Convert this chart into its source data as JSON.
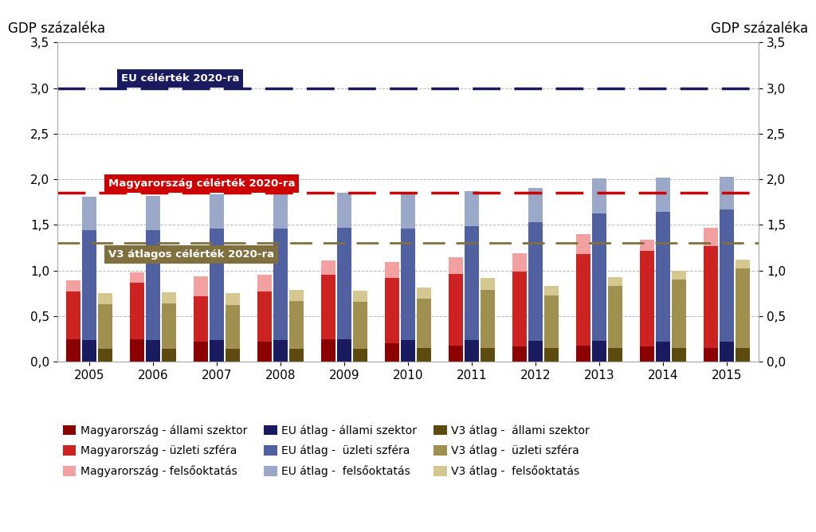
{
  "years": [
    2005,
    2006,
    2007,
    2008,
    2009,
    2010,
    2011,
    2012,
    2013,
    2014,
    2015
  ],
  "hu_gov": [
    0.25,
    0.25,
    0.22,
    0.22,
    0.25,
    0.2,
    0.18,
    0.17,
    0.18,
    0.17,
    0.15
  ],
  "hu_biz": [
    0.52,
    0.62,
    0.5,
    0.55,
    0.7,
    0.72,
    0.78,
    0.82,
    1.0,
    1.05,
    1.12
  ],
  "hu_edu": [
    0.12,
    0.11,
    0.22,
    0.18,
    0.16,
    0.17,
    0.19,
    0.2,
    0.22,
    0.12,
    0.2
  ],
  "eu_gov": [
    0.24,
    0.24,
    0.24,
    0.24,
    0.25,
    0.24,
    0.24,
    0.23,
    0.23,
    0.22,
    0.22
  ],
  "eu_biz": [
    1.2,
    1.2,
    1.22,
    1.22,
    1.22,
    1.22,
    1.25,
    1.3,
    1.4,
    1.42,
    1.45
  ],
  "eu_edu": [
    0.37,
    0.38,
    0.38,
    0.38,
    0.38,
    0.38,
    0.38,
    0.38,
    0.38,
    0.38,
    0.36
  ],
  "v3_gov": [
    0.14,
    0.14,
    0.14,
    0.14,
    0.14,
    0.15,
    0.15,
    0.15,
    0.15,
    0.15,
    0.15
  ],
  "v3_biz": [
    0.49,
    0.5,
    0.48,
    0.53,
    0.52,
    0.54,
    0.64,
    0.58,
    0.68,
    0.75,
    0.87
  ],
  "v3_edu": [
    0.12,
    0.12,
    0.13,
    0.12,
    0.12,
    0.12,
    0.13,
    0.1,
    0.1,
    0.1,
    0.1
  ],
  "eu_target": 3.0,
  "hu_target": 1.85,
  "v3_target": 1.3,
  "colors": {
    "hu_gov": "#8B0000",
    "hu_biz": "#CC2222",
    "hu_edu": "#F2A0A0",
    "eu_gov": "#1A1A5E",
    "eu_biz": "#5060A0",
    "eu_edu": "#9BA8C8",
    "v3_gov": "#5C4A10",
    "v3_biz": "#A09050",
    "v3_edu": "#D4C890"
  },
  "bar_width": 0.22,
  "bar_gap": 0.03,
  "ylim": [
    0.0,
    3.5
  ],
  "yticks": [
    0.0,
    0.5,
    1.0,
    1.5,
    2.0,
    2.5,
    3.0,
    3.5
  ],
  "ylabel_left": "GDP százaléka",
  "ylabel_right": "GDP százaléka",
  "eu_target_label": "EU célérték 2020-ra",
  "hu_target_label": "Magyarország célérték 2020-ra",
  "v3_target_label": "V3 átlagos célérték 2020-ra",
  "legend_labels": [
    "Magyarország - állami szektor",
    "Magyarország - üzleti szféra",
    "Magyarország - felsőoktatás",
    "EU átlag - állami szektor",
    "EU átlag -  üzleti szféra",
    "EU átlag -  felsőoktatás",
    "V3 átlag -  állami szektor",
    "V3 átlag -  üzleti szféra",
    "V3 átlag -  felsőoktatás"
  ],
  "bg_color": "#FFFFFF"
}
